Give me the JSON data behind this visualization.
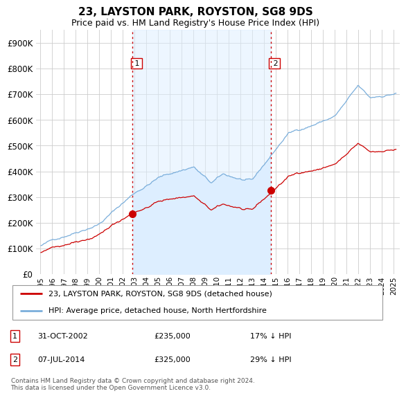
{
  "title": "23, LAYSTON PARK, ROYSTON, SG8 9DS",
  "subtitle": "Price paid vs. HM Land Registry's House Price Index (HPI)",
  "ylim": [
    0,
    950000
  ],
  "yticks": [
    0,
    100000,
    200000,
    300000,
    400000,
    500000,
    600000,
    700000,
    800000,
    900000
  ],
  "sale1_label": "31-OCT-2002",
  "sale1_price": 235000,
  "sale1_pct": "17% ↓ HPI",
  "sale2_label": "07-JUL-2014",
  "sale2_price": 325000,
  "sale2_pct": "29% ↓ HPI",
  "line_color_red": "#cc0000",
  "line_color_blue": "#7aaedb",
  "fill_color": "#ddeeff",
  "vline_color": "#cc0000",
  "legend_label_red": "23, LAYSTON PARK, ROYSTON, SG8 9DS (detached house)",
  "legend_label_blue": "HPI: Average price, detached house, North Hertfordshire",
  "footer_text": "Contains HM Land Registry data © Crown copyright and database right 2024.\nThis data is licensed under the Open Government Licence v3.0.",
  "background_color": "#ffffff",
  "grid_color": "#cccccc"
}
